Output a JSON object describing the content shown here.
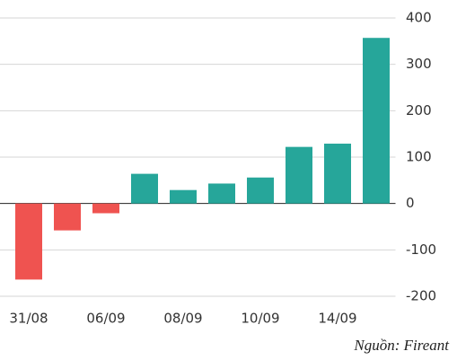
{
  "chart_data": {
    "type": "bar",
    "categories": [
      "31/08",
      null,
      "06/09",
      null,
      "08/09",
      null,
      "10/09",
      null,
      "14/09",
      null
    ],
    "values": [
      -164,
      -58,
      -21,
      64,
      29,
      43,
      56,
      122,
      129,
      357
    ],
    "positive_color": "#26a69a",
    "negative_color": "#ef5350",
    "ylim": [
      -200,
      400
    ],
    "yticks": [
      -200,
      -100,
      0,
      100,
      200,
      300,
      400
    ],
    "grid": true,
    "source": "Nguồn: Fireant"
  }
}
